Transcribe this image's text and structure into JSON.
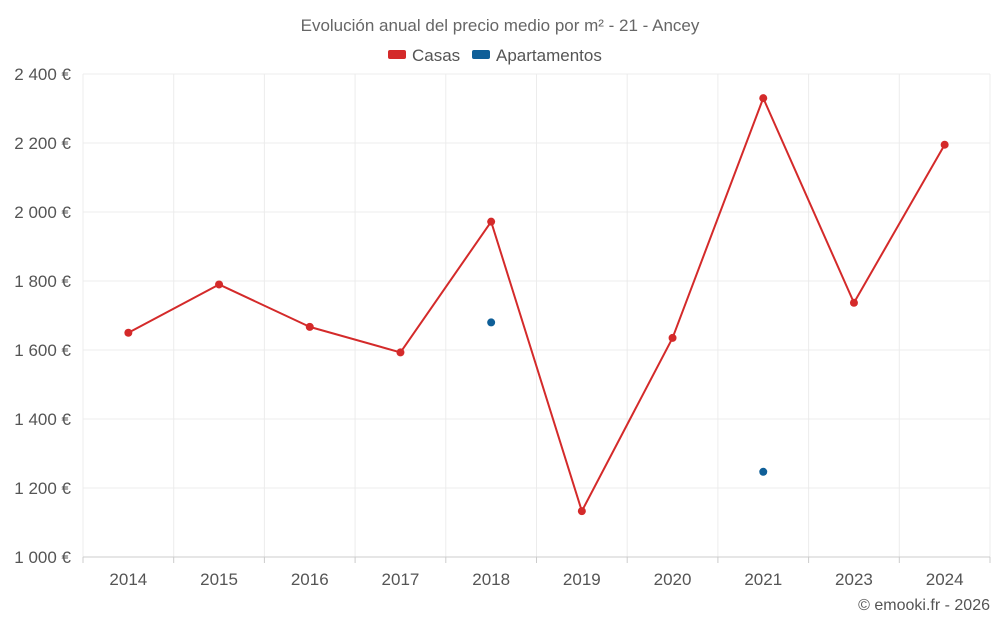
{
  "chart_data": {
    "type": "line",
    "title": "Evolución anual del precio medio por m² - 21 - Ancey",
    "categories": [
      "2014",
      "2015",
      "2016",
      "2017",
      "2018",
      "2019",
      "2020",
      "2021",
      "2023",
      "2024"
    ],
    "series": [
      {
        "name": "Casas",
        "color": "#d42a2a",
        "values": [
          1650,
          1790,
          1667,
          1593,
          1972,
          1133,
          1635,
          2330,
          1737,
          2195
        ]
      },
      {
        "name": "Apartamentos",
        "color": "#0f5f98",
        "values": [
          null,
          null,
          null,
          null,
          1680,
          null,
          null,
          1247,
          null,
          null
        ]
      }
    ],
    "ylim": [
      1000,
      2400
    ],
    "yticks": [
      1000,
      1200,
      1400,
      1600,
      1800,
      2000,
      2200,
      2400
    ],
    "ytick_labels": [
      "1 000 €",
      "1 200 €",
      "1 400 €",
      "1 600 €",
      "1 800 €",
      "2 000 €",
      "2 200 €",
      "2 400 €"
    ],
    "xlabel": "",
    "ylabel": "",
    "grid": true,
    "legend_position": "top-center"
  },
  "credit": "© emooki.fr - 2026"
}
